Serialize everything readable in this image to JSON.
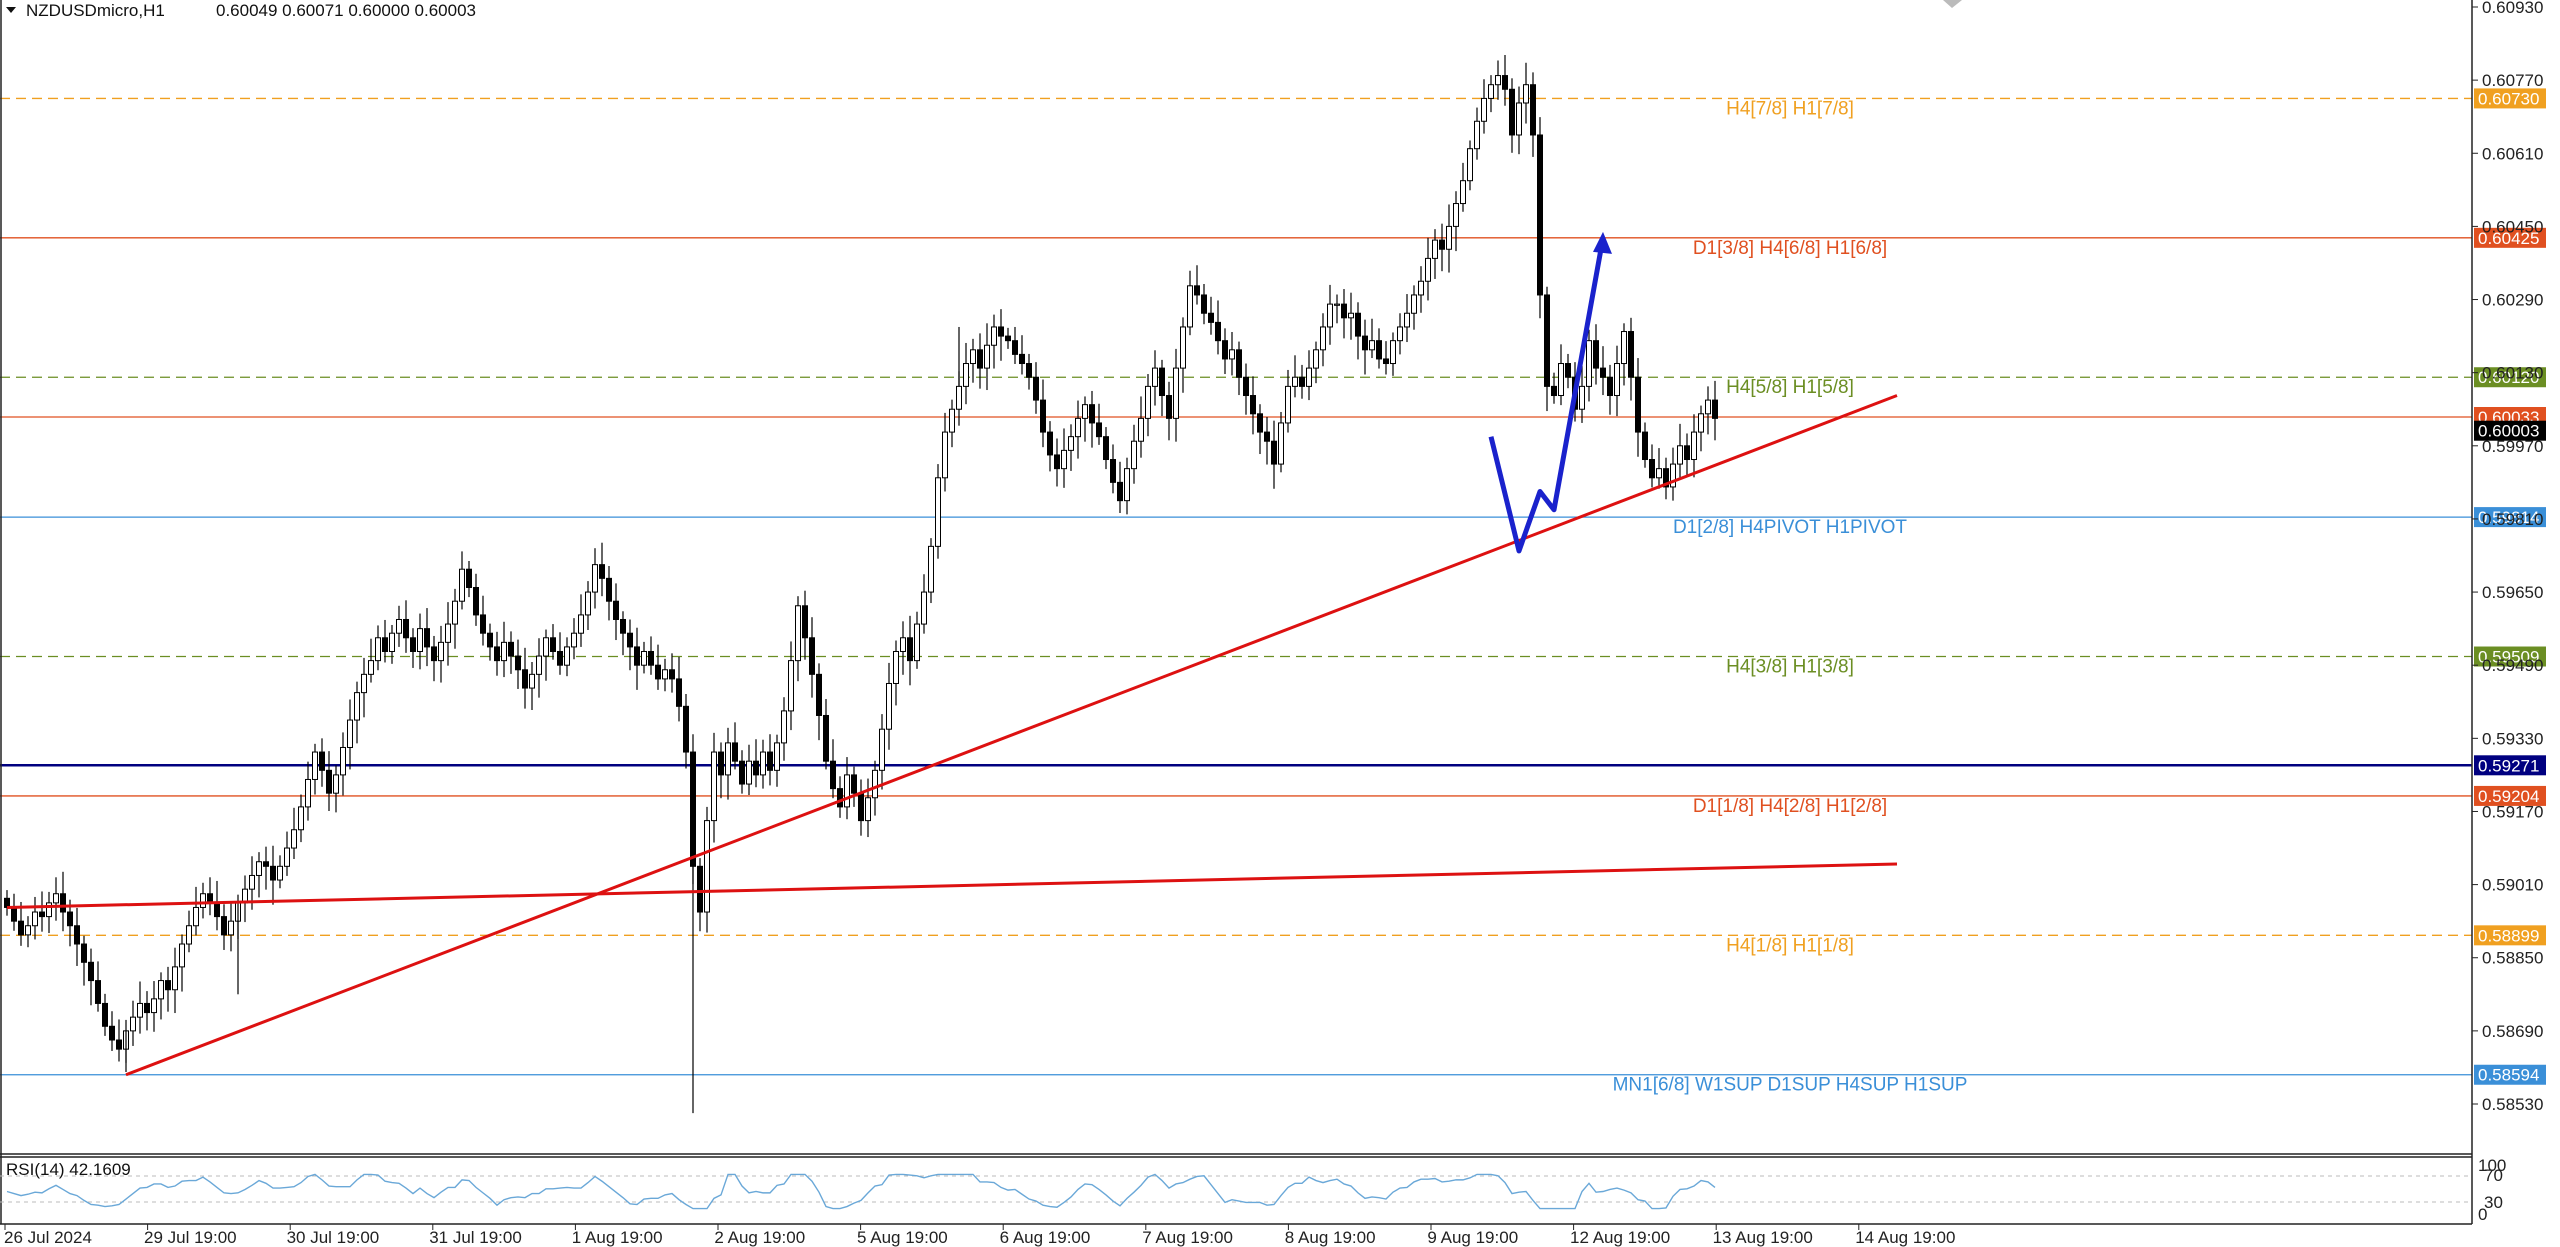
{
  "header": {
    "symbol": "NZDUSDmicro,H1",
    "ohlc": "0.60049 0.60071 0.60000 0.60003"
  },
  "rsi": {
    "label": "RSI(14) 42.1609",
    "levels": [
      "100",
      "70",
      "30",
      "0"
    ],
    "current": 42.1609
  },
  "colors": {
    "bull": "#ffffff",
    "bear": "#000000",
    "trend": "#dd1111",
    "arrow": "#1a22cc",
    "navy": "#000080"
  },
  "chart_data": {
    "type": "candlestick",
    "symbol": "NZDUSDmicro",
    "timeframe": "H1",
    "price_ticks": [
      "0.60930",
      "0.60770",
      "0.60610",
      "0.60450",
      "0.60290",
      "0.60130",
      "0.59970",
      "0.59810",
      "0.59650",
      "0.59490",
      "0.59330",
      "0.59170",
      "0.59010",
      "0.58850",
      "0.58690",
      "0.58530"
    ],
    "time_ticks": [
      "26 Jul 2024",
      "29 Jul 19:00",
      "30 Jul 19:00",
      "31 Jul 19:00",
      "1 Aug 19:00",
      "2 Aug 19:00",
      "5 Aug 19:00",
      "6 Aug 19:00",
      "7 Aug 19:00",
      "8 Aug 19:00",
      "9 Aug 19:00",
      "12 Aug 19:00",
      "13 Aug 19:00",
      "14 Aug 19:00"
    ],
    "current_price": 0.60003,
    "levels": [
      {
        "price": 0.6073,
        "tag": "0.60730",
        "label": "H4[7/8] H1[7/8]",
        "color": "#f0a020",
        "style": "dash"
      },
      {
        "price": 0.60425,
        "tag": "0.60425",
        "label": "D1[3/8] H4[6/8] H1[6/8]",
        "color": "#e05020",
        "style": "solid"
      },
      {
        "price": 0.6012,
        "tag": "0.60120",
        "label": "H4[5/8] H1[5/8]",
        "color": "#6b8e23",
        "style": "dash"
      },
      {
        "price": 0.60033,
        "tag": "0.60033",
        "label": "",
        "color": "#e05020",
        "style": "solid"
      },
      {
        "price": 0.59814,
        "tag": "0.59814",
        "label": "D1[2/8] H4PIVOT H1PIVOT",
        "color": "#3a8fd8",
        "style": "solid"
      },
      {
        "price": 0.59509,
        "tag": "0.59509",
        "label": "H4[3/8] H1[3/8]",
        "color": "#6b8e23",
        "style": "dash"
      },
      {
        "price": 0.59271,
        "tag": "0.59271",
        "label": "",
        "color": "#000080",
        "style": "solid"
      },
      {
        "price": 0.59204,
        "tag": "0.59204",
        "label": "D1[1/8] H4[2/8] H1[2/8]",
        "color": "#e05020",
        "style": "solid"
      },
      {
        "price": 0.58899,
        "tag": "0.58899",
        "label": "H4[1/8] H1[1/8]",
        "color": "#f0a020",
        "style": "dash"
      },
      {
        "price": 0.58594,
        "tag": "0.58594",
        "label": "MN1[6/8] W1SUP D1SUP H4SUP H1SUP",
        "color": "#3a8fd8",
        "style": "solid"
      }
    ],
    "trendlines": [
      {
        "from": [
          0,
          0.5896
        ],
        "to": [
          270,
          0.59055
        ]
      },
      {
        "from": [
          17,
          0.58594
        ],
        "to": [
          270,
          0.6008
        ]
      }
    ],
    "forecast_path": [
      [
        212,
        0.5999
      ],
      [
        216,
        0.5974
      ],
      [
        219,
        0.5987
      ],
      [
        221,
        0.5983
      ],
      [
        228,
        0.60425
      ]
    ],
    "closes": [
      0.5896,
      0.5893,
      0.589,
      0.5892,
      0.5895,
      0.5894,
      0.5897,
      0.5899,
      0.5895,
      0.5892,
      0.5888,
      0.5884,
      0.588,
      0.5875,
      0.587,
      0.5867,
      0.5865,
      0.5869,
      0.5872,
      0.5875,
      0.5873,
      0.5876,
      0.588,
      0.5878,
      0.5883,
      0.5888,
      0.5892,
      0.5896,
      0.5899,
      0.5897,
      0.5894,
      0.589,
      0.5893,
      0.5897,
      0.59,
      0.5903,
      0.5906,
      0.5905,
      0.5902,
      0.5905,
      0.5909,
      0.5913,
      0.5918,
      0.5924,
      0.593,
      0.5926,
      0.5921,
      0.5925,
      0.5931,
      0.5937,
      0.5943,
      0.5947,
      0.595,
      0.5955,
      0.5952,
      0.5956,
      0.5959,
      0.5955,
      0.5952,
      0.5957,
      0.5953,
      0.595,
      0.5954,
      0.5958,
      0.5963,
      0.597,
      0.5966,
      0.596,
      0.5956,
      0.5953,
      0.595,
      0.5954,
      0.5951,
      0.5948,
      0.5944,
      0.5947,
      0.5951,
      0.5955,
      0.5952,
      0.5949,
      0.5953,
      0.5956,
      0.596,
      0.5965,
      0.5971,
      0.5968,
      0.5963,
      0.5959,
      0.5956,
      0.5953,
      0.5949,
      0.5952,
      0.5949,
      0.5946,
      0.5948,
      0.5946,
      0.594,
      0.593,
      0.5905,
      0.5895,
      0.5915,
      0.593,
      0.5925,
      0.5932,
      0.5928,
      0.5923,
      0.5928,
      0.5925,
      0.593,
      0.5926,
      0.5932,
      0.5939,
      0.595,
      0.5962,
      0.5955,
      0.5947,
      0.5938,
      0.5928,
      0.5922,
      0.5918,
      0.5925,
      0.5921,
      0.5915,
      0.592,
      0.5926,
      0.5935,
      0.5945,
      0.5952,
      0.5955,
      0.595,
      0.5958,
      0.5965,
      0.5975,
      0.599,
      0.6,
      0.6005,
      0.601,
      0.6015,
      0.6018,
      0.6014,
      0.6019,
      0.6023,
      0.6021,
      0.602,
      0.6017,
      0.6015,
      0.6012,
      0.6007,
      0.6,
      0.5995,
      0.5992,
      0.5996,
      0.5999,
      0.6003,
      0.6006,
      0.6002,
      0.5999,
      0.5994,
      0.5989,
      0.5985,
      0.5992,
      0.5998,
      0.6003,
      0.601,
      0.6014,
      0.6008,
      0.6003,
      0.6014,
      0.6023,
      0.6032,
      0.603,
      0.6026,
      0.6024,
      0.602,
      0.6016,
      0.6018,
      0.6012,
      0.6008,
      0.6004,
      0.6,
      0.5998,
      0.5993,
      0.6002,
      0.601,
      0.6012,
      0.601,
      0.6014,
      0.6018,
      0.6023,
      0.6028,
      0.6028,
      0.6025,
      0.6026,
      0.6021,
      0.6018,
      0.602,
      0.6016,
      0.6015,
      0.602,
      0.6023,
      0.6026,
      0.603,
      0.6033,
      0.6038,
      0.6042,
      0.604,
      0.6045,
      0.605,
      0.6055,
      0.6062,
      0.6068,
      0.6073,
      0.6076,
      0.6078,
      0.6075,
      0.6065,
      0.6072,
      0.6076,
      0.6065,
      0.603,
      0.601,
      0.6008,
      0.6015,
      0.6012,
      0.6005,
      0.601,
      0.602,
      0.6014,
      0.6012,
      0.6008,
      0.6015,
      0.6022,
      0.6012,
      0.6,
      0.5994,
      0.599,
      0.5992,
      0.5988,
      0.5993,
      0.5997,
      0.5994,
      0.6,
      0.6004,
      0.6007,
      0.6003
    ]
  }
}
